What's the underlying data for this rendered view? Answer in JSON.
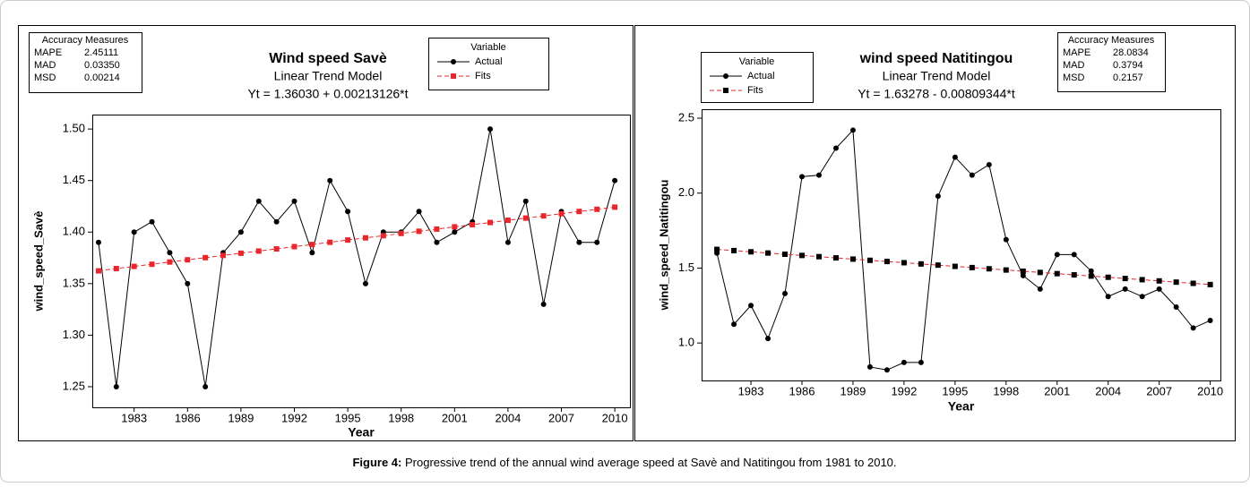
{
  "chart_data": [
    {
      "type": "line",
      "title": "Wind speed Savè",
      "subtitle": "Linear Trend Model",
      "equation": "Yt = 1.36030 + 0.00213126*t",
      "xlabel": "Year",
      "ylabel": "wind_speed_Savè",
      "legend_title": "Variable",
      "accuracy_measures": {
        "title": "Accuracy Measures",
        "rows": [
          [
            "MAPE",
            "2.45111"
          ],
          [
            "MAD",
            "0.03350"
          ],
          [
            "MSD",
            "0.00214"
          ]
        ]
      },
      "x": [
        1981,
        1982,
        1983,
        1984,
        1985,
        1986,
        1987,
        1988,
        1989,
        1990,
        1991,
        1992,
        1993,
        1994,
        1995,
        1996,
        1997,
        1998,
        1999,
        2000,
        2001,
        2002,
        2003,
        2004,
        2005,
        2006,
        2007,
        2008,
        2009,
        2010
      ],
      "series": [
        {
          "name": "Actual",
          "color": "#000000",
          "marker": "circle",
          "marker_color": "#000000",
          "dashed": false,
          "values": [
            1.39,
            1.25,
            1.4,
            1.41,
            1.38,
            1.35,
            1.25,
            1.38,
            1.4,
            1.43,
            1.41,
            1.43,
            1.38,
            1.45,
            1.42,
            1.35,
            1.4,
            1.4,
            1.42,
            1.39,
            1.4,
            1.41,
            1.5,
            1.39,
            1.43,
            1.33,
            1.42,
            1.39,
            1.39,
            1.45
          ]
        },
        {
          "name": "Fits",
          "color": "#e8262b",
          "marker": "square",
          "marker_color": "#e8262b",
          "dashed": true,
          "values": [
            1.3624,
            1.3646,
            1.3667,
            1.3688,
            1.371,
            1.3731,
            1.3752,
            1.3774,
            1.3795,
            1.3816,
            1.3837,
            1.3859,
            1.388,
            1.3901,
            1.3923,
            1.3944,
            1.3965,
            1.3987,
            1.4008,
            1.4029,
            1.4051,
            1.4072,
            1.4093,
            1.4115,
            1.4136,
            1.4157,
            1.4178,
            1.42,
            1.4221,
            1.4242
          ]
        }
      ],
      "xlim": [
        1980.65,
        2010.85
      ],
      "xticks": [
        1983,
        1986,
        1989,
        1992,
        1995,
        1998,
        2001,
        2004,
        2007,
        2010
      ],
      "ylim": [
        1.23,
        1.514
      ],
      "yticks": [
        1.25,
        {
          "value": 1.3,
          "label": "1.30"
        },
        1.35,
        {
          "value": 1.4,
          "label": "1.40"
        },
        1.45,
        {
          "value": 1.5,
          "label": "1.50"
        }
      ]
    },
    {
      "type": "line",
      "title": "wind speed Natitingou",
      "subtitle": "Linear Trend Model",
      "equation": "Yt = 1.63278 - 0.00809344*t",
      "xlabel": "Year",
      "ylabel": "wind_speed_Natitingou",
      "legend_title": "Variable",
      "accuracy_measures": {
        "title": "Accuracy Measures",
        "rows": [
          [
            "MAPE",
            "28.0834"
          ],
          [
            "MAD",
            "0.3794"
          ],
          [
            "MSD",
            "0.2157"
          ]
        ]
      },
      "x": [
        1981,
        1982,
        1983,
        1984,
        1985,
        1986,
        1987,
        1988,
        1989,
        1990,
        1991,
        1992,
        1993,
        1994,
        1995,
        1996,
        1997,
        1998,
        1999,
        2000,
        2001,
        2002,
        2003,
        2004,
        2005,
        2006,
        2007,
        2008,
        2009,
        2010
      ],
      "series": [
        {
          "name": "Actual",
          "color": "#000000",
          "marker": "circle",
          "marker_color": "#000000",
          "dashed": false,
          "values": [
            1.6,
            1.125,
            1.25,
            1.03,
            1.33,
            2.11,
            2.12,
            2.3,
            2.42,
            0.84,
            0.82,
            0.87,
            0.87,
            1.98,
            2.24,
            2.12,
            2.19,
            1.69,
            1.45,
            1.36,
            1.59,
            1.59,
            1.48,
            1.31,
            1.36,
            1.31,
            1.36,
            1.24,
            1.1,
            1.15
          ]
        },
        {
          "name": "Fits",
          "color": "#e8262b",
          "marker": "square",
          "marker_color": "#000000",
          "dashed": true,
          "values": [
            1.6247,
            1.6166,
            1.6085,
            1.6004,
            1.5923,
            1.5842,
            1.5761,
            1.568,
            1.5599,
            1.5518,
            1.5438,
            1.5357,
            1.5276,
            1.5195,
            1.5114,
            1.5033,
            1.4952,
            1.4871,
            1.479,
            1.4709,
            1.4628,
            1.4547,
            1.4466,
            1.4386,
            1.4305,
            1.4224,
            1.4143,
            1.4062,
            1.3981,
            1.39
          ]
        }
      ],
      "xlim": [
        1980.1,
        2010.6
      ],
      "xticks": [
        1983,
        1986,
        1989,
        1992,
        1995,
        1998,
        2001,
        2004,
        2007,
        2010
      ],
      "ylim": [
        0.75,
        2.56
      ],
      "yticks": [
        {
          "value": 1.0,
          "label": "1.0"
        },
        1.5,
        {
          "value": 2.0,
          "label": "2.0"
        },
        2.5
      ]
    }
  ],
  "caption": {
    "label": "Figure 4:",
    "text": " Progressive trend of the annual wind average speed at Savè and Natitingou from 1981 to 2010."
  }
}
